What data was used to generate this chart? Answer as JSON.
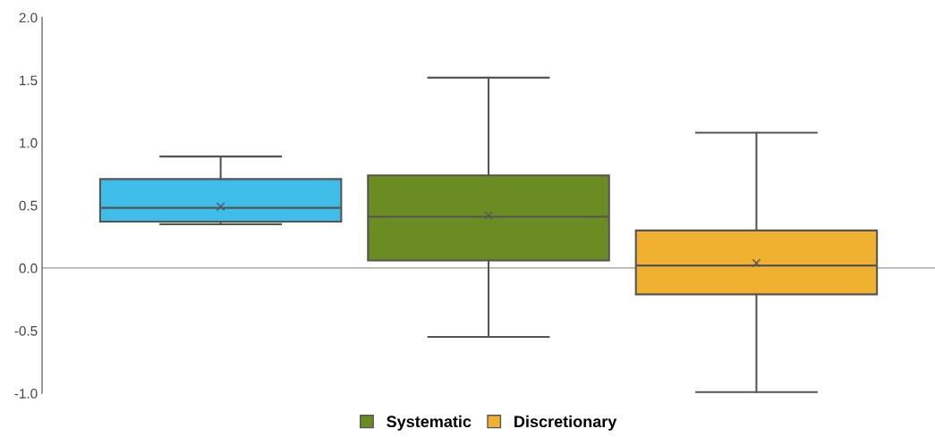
{
  "chart_data": {
    "type": "box",
    "categories": [
      null
    ],
    "series": [
      {
        "color": "#3dbde8",
        "boxes": [
          {
            "low": 0.35,
            "q1": 0.37,
            "median": 0.48,
            "q3": 0.71,
            "high": 0.89,
            "mean": 0.49
          }
        ]
      },
      {
        "name": "Systematic",
        "color": "#6b8c23",
        "boxes": [
          {
            "low": -0.55,
            "q1": 0.06,
            "median": 0.41,
            "q3": 0.74,
            "high": 1.52,
            "mean": 0.42
          }
        ]
      },
      {
        "name": "Discretionary",
        "color": "#f0b030",
        "boxes": [
          {
            "low": -0.99,
            "q1": -0.21,
            "median": 0.02,
            "q3": 0.3,
            "high": 1.08,
            "mean": 0.04
          }
        ]
      }
    ],
    "ylim": [
      -1.0,
      2.0
    ],
    "yticks": [
      {
        "value": -1.0,
        "label": "-1.0"
      },
      {
        "value": -0.5,
        "label": "-0.5"
      },
      {
        "value": 0.0,
        "label": "0.0"
      },
      {
        "value": 0.5,
        "label": "0.5"
      },
      {
        "value": 1.0,
        "label": "1.0"
      },
      {
        "value": 1.5,
        "label": "1.5"
      },
      {
        "value": 2.0,
        "label": "2.0"
      }
    ],
    "ref_lines": [
      {
        "axis": "y",
        "value": 0.0,
        "color": "#999999"
      }
    ],
    "grid": false,
    "legend": "bottom",
    "marker": "cross"
  }
}
